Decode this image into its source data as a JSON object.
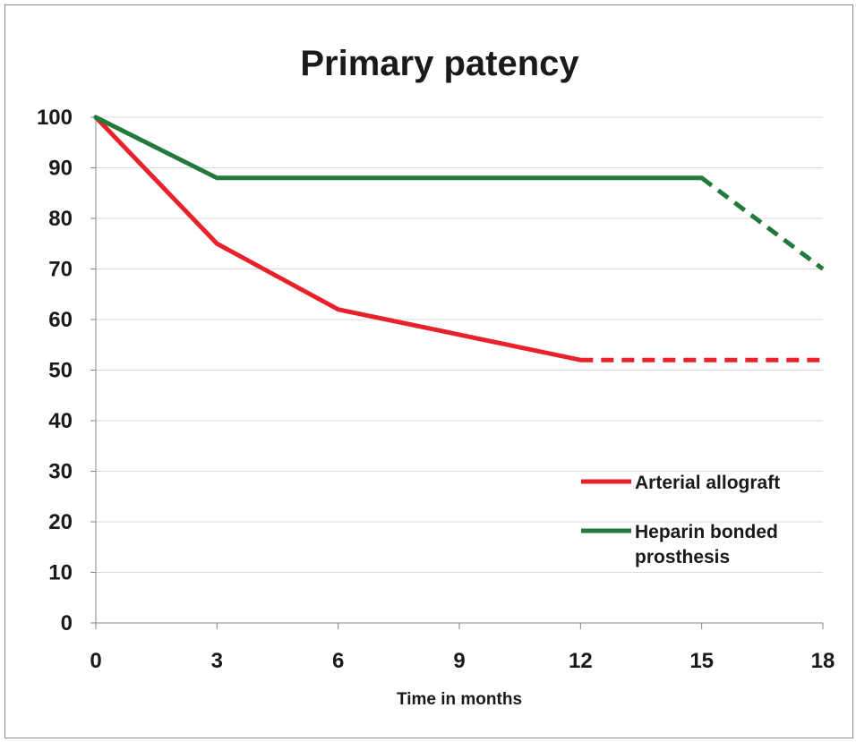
{
  "chart_data": {
    "type": "line",
    "title": "Primary patency",
    "xlabel": "Time in months",
    "ylabel": "",
    "x_ticks": [
      0,
      3,
      6,
      9,
      12,
      15,
      18
    ],
    "y_ticks": [
      0,
      10,
      20,
      30,
      40,
      50,
      60,
      70,
      80,
      90,
      100
    ],
    "xlim": [
      0,
      18
    ],
    "ylim": [
      0,
      100
    ],
    "grid": "horizontal",
    "legend_position": "bottom-right",
    "series": [
      {
        "name": "Arterial allograft",
        "color": "#e8212b",
        "points": [
          [
            0,
            100
          ],
          [
            3,
            75
          ],
          [
            6,
            62
          ],
          [
            12,
            52
          ]
        ],
        "dashed_points": [
          [
            12,
            52
          ],
          [
            18,
            52
          ]
        ]
      },
      {
        "name": "Heparin bonded prosthesis",
        "color": "#217a3a",
        "points": [
          [
            0,
            100
          ],
          [
            3,
            88
          ],
          [
            15,
            88
          ]
        ],
        "dashed_points": [
          [
            15,
            88
          ],
          [
            18,
            70
          ]
        ]
      }
    ]
  }
}
